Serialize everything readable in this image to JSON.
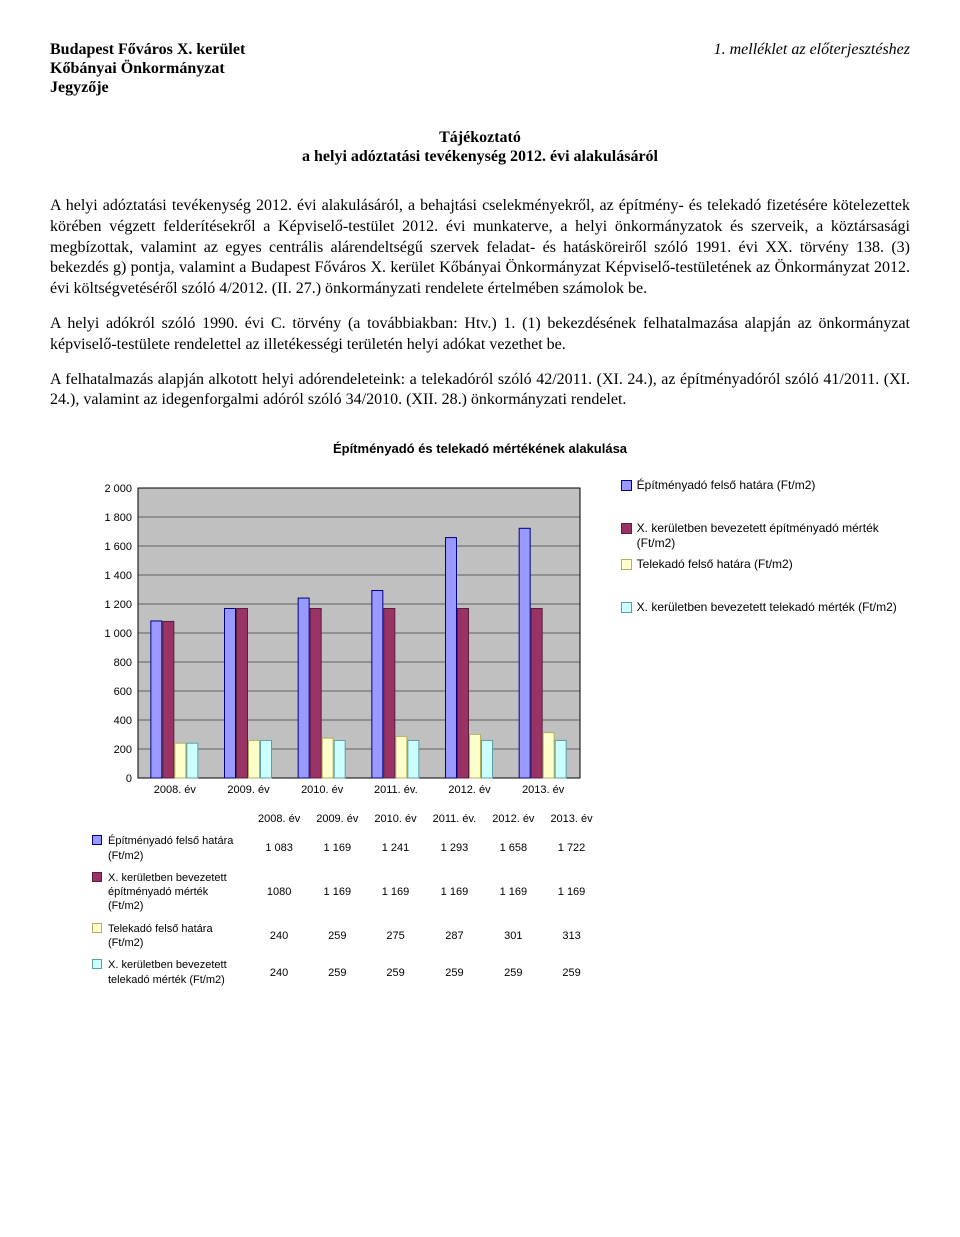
{
  "header": {
    "org1": "Budapest Főváros X. kerület",
    "org2": "Kőbányai Önkormányzat",
    "org3": "Jegyzője",
    "attachment": "1. melléklet az előterjesztéshez"
  },
  "title": {
    "line1": "Tájékoztató",
    "line2": "a helyi adóztatási tevékenység 2012. évi alakulásáról"
  },
  "paragraphs": {
    "p1": "A helyi adóztatási tevékenység 2012. évi alakulásáról, a behajtási cselekményekről, az építmény- és telekadó fizetésére kötelezettek körében végzett felderítésekről a Képviselő-testület 2012. évi munkaterve, a helyi önkormányzatok és szerveik, a köztársasági megbízottak, valamint az egyes centrális alárendeltségű szervek feladat- és hatásköreiről szóló 1991. évi XX. törvény 138. (3) bekezdés g) pontja, valamint a Budapest Főváros X. kerület Kőbányai Önkormányzat Képviselő-testületének az Önkormányzat 2012. évi költségvetéséről szóló 4/2012. (II. 27.) önkormányzati rendelete értelmében számolok be.",
    "p2": "A helyi adókról szóló 1990. évi C. törvény (a továbbiakban: Htv.) 1. (1) bekezdésének felhatalmazása alapján az önkormányzat képviselő-testülete rendelettel az illetékességi területén helyi adókat vezethet be.",
    "p3": "A felhatalmazás alapján alkotott helyi adórendeleteink: a telekadóról szóló 42/2011. (XI. 24.), az építményadóról szóló 41/2011. (XI. 24.), valamint az idegenforgalmi adóról szóló 34/2010. (XII. 28.) önkormányzati rendelet."
  },
  "chart": {
    "title": "Építményadó és telekadó mértékének alakulása",
    "type": "bar",
    "categories": [
      "2008. év",
      "2009. év",
      "2010. év",
      "2011. év.",
      "2012. év",
      "2013. év"
    ],
    "series": [
      {
        "name": "Építményadó felső határa (Ft/m2)",
        "values": [
          1083,
          1169,
          1241,
          1293,
          1658,
          1722
        ],
        "fill": "#9999ff",
        "stroke": "#000080"
      },
      {
        "name": "X. kerületben bevezetett építményadó mérték (Ft/m2)",
        "values": [
          1080,
          1169,
          1169,
          1169,
          1169,
          1169
        ],
        "fill": "#993366",
        "stroke": "#5a1f3d"
      },
      {
        "name": "Telekadó felső határa (Ft/m2)",
        "values": [
          240,
          259,
          275,
          287,
          301,
          313
        ],
        "fill": "#ffffcc",
        "stroke": "#b0b060"
      },
      {
        "name": "X. kerületben bevezetett telekadó mérték (Ft/m2)",
        "values": [
          240,
          259,
          259,
          259,
          259,
          259
        ],
        "fill": "#ccffff",
        "stroke": "#5aa0a0"
      }
    ],
    "ylim": [
      0,
      2000
    ],
    "ytick_step": 200,
    "yticks": [
      "0",
      "200",
      "400",
      "600",
      "800",
      "1 000",
      "1 200",
      "1 400",
      "1 600",
      "1 800",
      "2 000"
    ],
    "plot_bg": "#c0c0c0",
    "grid_color": "#000000",
    "axis_color": "#000000",
    "label_fontsize": 11,
    "table_values": {
      "row0": [
        "1 083",
        "1 169",
        "1 241",
        "1 293",
        "1 658",
        "1 722"
      ],
      "row1": [
        "1080",
        "1 169",
        "1 169",
        "1 169",
        "1 169",
        "1 169"
      ],
      "row2": [
        "240",
        "259",
        "275",
        "287",
        "301",
        "313"
      ],
      "row3": [
        "240",
        "259",
        "259",
        "259",
        "259",
        "259"
      ]
    }
  }
}
